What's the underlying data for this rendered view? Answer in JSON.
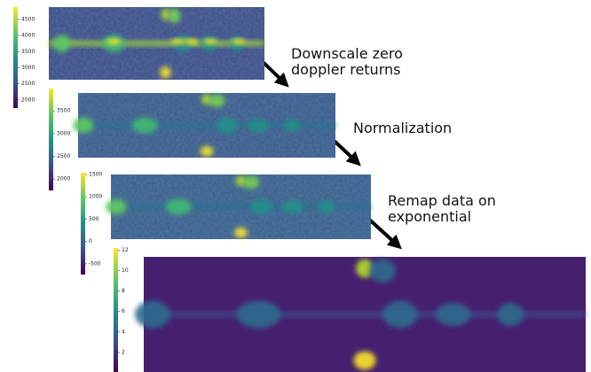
{
  "panels": [
    {
      "colorbar": {
        "range": [
          1750,
          4880
        ],
        "ticks": [
          2000,
          2500,
          3000,
          3500,
          4000,
          4500
        ]
      }
    },
    {
      "colorbar": {
        "range": [
          1750,
          3990
        ],
        "ticks": [
          2000,
          2500,
          3000,
          3500
        ]
      }
    },
    {
      "colorbar": {
        "range": [
          -740,
          1540
        ],
        "ticks": [
          -500,
          0,
          500,
          1000,
          1500
        ]
      }
    },
    {
      "colorbar": {
        "range": [
          0.1,
          12.2
        ],
        "ticks": [
          2,
          4,
          6,
          8,
          10,
          12
        ]
      }
    }
  ],
  "steps": [
    {
      "lines": [
        "Downscale zero",
        "doppler returns"
      ]
    },
    {
      "lines": [
        "Normalization"
      ]
    },
    {
      "lines": [
        "Remap data on",
        "exponential"
      ]
    }
  ]
}
